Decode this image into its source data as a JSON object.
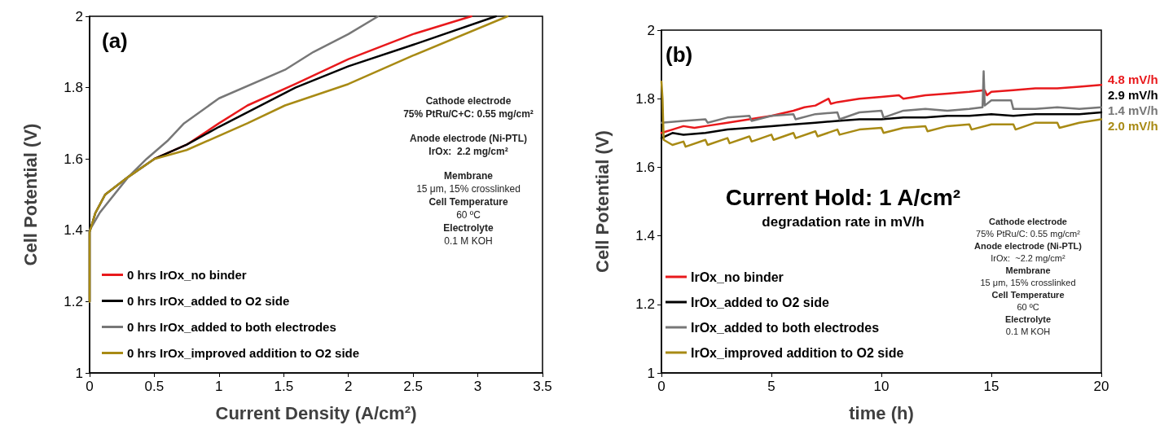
{
  "chart_data": [
    {
      "type": "line",
      "title": "(a)",
      "xlabel": "Current Density (A/cm²)",
      "ylabel": "Cell Potential (V)",
      "xlim": [
        0,
        3.5
      ],
      "xticks": [
        0,
        0.5,
        1,
        1.5,
        2,
        2.5,
        3,
        3.5
      ],
      "ylim": [
        1,
        2
      ],
      "yticks": [
        1,
        1.2,
        1.4,
        1.6,
        1.8,
        2
      ],
      "grid": false,
      "legend": "bottom left",
      "marker": "none",
      "line_style": "solid",
      "annotations": [
        "Cathode electrode",
        "75% PtRu/C+C: 0.55 mg/cm²",
        "Anode electrode (Ni-PTL)",
        "IrOx:  2.2 mg/cm²",
        "Membrane",
        "15 μm, 15% crosslinked",
        "Cell Temperature",
        "60 ºC",
        "Electrolyte",
        "0.1 M KOH"
      ],
      "series": [
        {
          "name": "0 hrs IrOx_no binder",
          "color": "#e8191c",
          "x": [
            0.5,
            0.75,
            1,
            1.22,
            1.59,
            2,
            2.5,
            2.95
          ],
          "values": [
            1.6,
            1.64,
            1.7,
            1.75,
            1.81,
            1.88,
            1.95,
            2
          ]
        },
        {
          "name": "0 hrs IrOx_added to O2 side",
          "color": "#000000",
          "x": [
            0,
            0,
            0.044,
            0.12,
            0.3,
            0.5,
            0.75,
            1,
            1.59,
            2,
            2.5,
            3.14
          ],
          "values": [
            1.2,
            1.395,
            1.448,
            1.5,
            1.55,
            1.6,
            1.64,
            1.69,
            1.8,
            1.86,
            1.92,
            2
          ]
        },
        {
          "name": "0 hrs IrOx_added to both electrodes",
          "color": "#777777",
          "x": [
            0,
            0,
            0.08,
            0.3,
            0.44,
            0.6,
            0.73,
            1,
            1.51,
            1.73,
            2,
            2.23
          ],
          "values": [
            1.2,
            1.4,
            1.45,
            1.55,
            1.6,
            1.65,
            1.7,
            1.77,
            1.85,
            1.9,
            1.95,
            2
          ]
        },
        {
          "name": "0 hrs IrOx_improved addition to O2 side",
          "color": "#a88a14",
          "x": [
            0,
            0,
            0.044,
            0.12,
            0.3,
            0.5,
            0.75,
            1.22,
            1.51,
            2,
            2.5,
            3.23
          ],
          "values": [
            1.2,
            1.395,
            1.448,
            1.5,
            1.55,
            1.6,
            1.625,
            1.7,
            1.75,
            1.81,
            1.89,
            2
          ]
        }
      ]
    },
    {
      "type": "line",
      "title": "(b)",
      "subtitle": "Current Hold: 1 A/cm²",
      "xlabel": "time (h)",
      "ylabel": "Cell Potential (V)",
      "xlim": [
        0,
        20
      ],
      "xticks": [
        0,
        5,
        10,
        15,
        20
      ],
      "ylim": [
        1,
        2
      ],
      "yticks": [
        1,
        1.2,
        1.4,
        1.6,
        1.8,
        2
      ],
      "grid": false,
      "legend": "bottom left",
      "marker": "none",
      "line_style": "solid",
      "annotations": [
        "degradation rate in mV/h",
        "Cathode electrode",
        "75% PtRu/C: 0.55 mg/cm²",
        "Anode electrode (Ni-PTL)",
        "IrOx:  ~2.2 mg/cm²",
        "Membrane",
        "15 μm, 15% crosslinked",
        "Cell Temperature",
        "60 ºC",
        "Electrolyte",
        "0.1 M KOH",
        "4.8 mV/h",
        "2.9 mV/h",
        "1.4 mV/h",
        "2.0 mV/h"
      ],
      "series": [
        {
          "name": "IrOx_no binder",
          "color": "#e8191c",
          "x": [
            0,
            0.5,
            1,
            1.5,
            2,
            3,
            4,
            5,
            6,
            6.5,
            7,
            7.6,
            7.7,
            8,
            9,
            10,
            10.8,
            11,
            12,
            13,
            14,
            14.7,
            14.8,
            15,
            16,
            17,
            18,
            19,
            20
          ],
          "values": [
            1.7,
            1.71,
            1.72,
            1.715,
            1.72,
            1.73,
            1.74,
            1.75,
            1.765,
            1.775,
            1.78,
            1.8,
            1.785,
            1.79,
            1.8,
            1.805,
            1.81,
            1.8,
            1.81,
            1.815,
            1.82,
            1.825,
            1.81,
            1.82,
            1.825,
            1.83,
            1.83,
            1.835,
            1.84
          ]
        },
        {
          "name": "IrOx_added to O2 side",
          "color": "#000000",
          "x": [
            0,
            0.5,
            1,
            2,
            3,
            4,
            5,
            6,
            7,
            8,
            9,
            10,
            11,
            12,
            13,
            14,
            15,
            16,
            17,
            18,
            19,
            20
          ],
          "values": [
            1.685,
            1.7,
            1.695,
            1.7,
            1.71,
            1.715,
            1.72,
            1.725,
            1.73,
            1.735,
            1.74,
            1.74,
            1.745,
            1.745,
            1.75,
            1.75,
            1.755,
            1.75,
            1.755,
            1.755,
            1.755,
            1.76
          ]
        },
        {
          "name": "IrOx_added to both electrodes",
          "color": "#777777",
          "x": [
            0,
            1,
            2,
            2.1,
            3,
            4,
            4.1,
            5,
            6,
            6.1,
            7,
            8,
            8.1,
            9,
            10,
            10.1,
            11,
            12,
            13,
            14,
            14.6,
            14.65,
            14.7,
            15,
            15.9,
            16,
            17,
            18,
            19,
            20
          ],
          "values": [
            1.73,
            1.735,
            1.74,
            1.73,
            1.745,
            1.75,
            1.735,
            1.75,
            1.755,
            1.74,
            1.755,
            1.76,
            1.74,
            1.76,
            1.765,
            1.745,
            1.765,
            1.77,
            1.765,
            1.77,
            1.775,
            1.88,
            1.78,
            1.795,
            1.795,
            1.77,
            1.77,
            1.775,
            1.77,
            1.775
          ]
        },
        {
          "name": "IrOx_improved addition to O2 side",
          "color": "#a88a14",
          "x": [
            0,
            0.05,
            0.1,
            0.5,
            1,
            1.1,
            2,
            2.1,
            3,
            3.1,
            4,
            4.1,
            5,
            5.1,
            6,
            6.1,
            7,
            7.1,
            8,
            8.1,
            9,
            10,
            10.1,
            11,
            12,
            12.1,
            13,
            14,
            14.1,
            15,
            16,
            16.1,
            17,
            18,
            18.1,
            19,
            20
          ],
          "values": [
            1.85,
            1.8,
            1.68,
            1.665,
            1.675,
            1.66,
            1.68,
            1.665,
            1.685,
            1.67,
            1.69,
            1.675,
            1.695,
            1.68,
            1.7,
            1.685,
            1.705,
            1.69,
            1.71,
            1.695,
            1.71,
            1.715,
            1.7,
            1.715,
            1.72,
            1.705,
            1.72,
            1.725,
            1.71,
            1.725,
            1.725,
            1.71,
            1.73,
            1.73,
            1.715,
            1.73,
            1.74
          ]
        }
      ]
    }
  ]
}
